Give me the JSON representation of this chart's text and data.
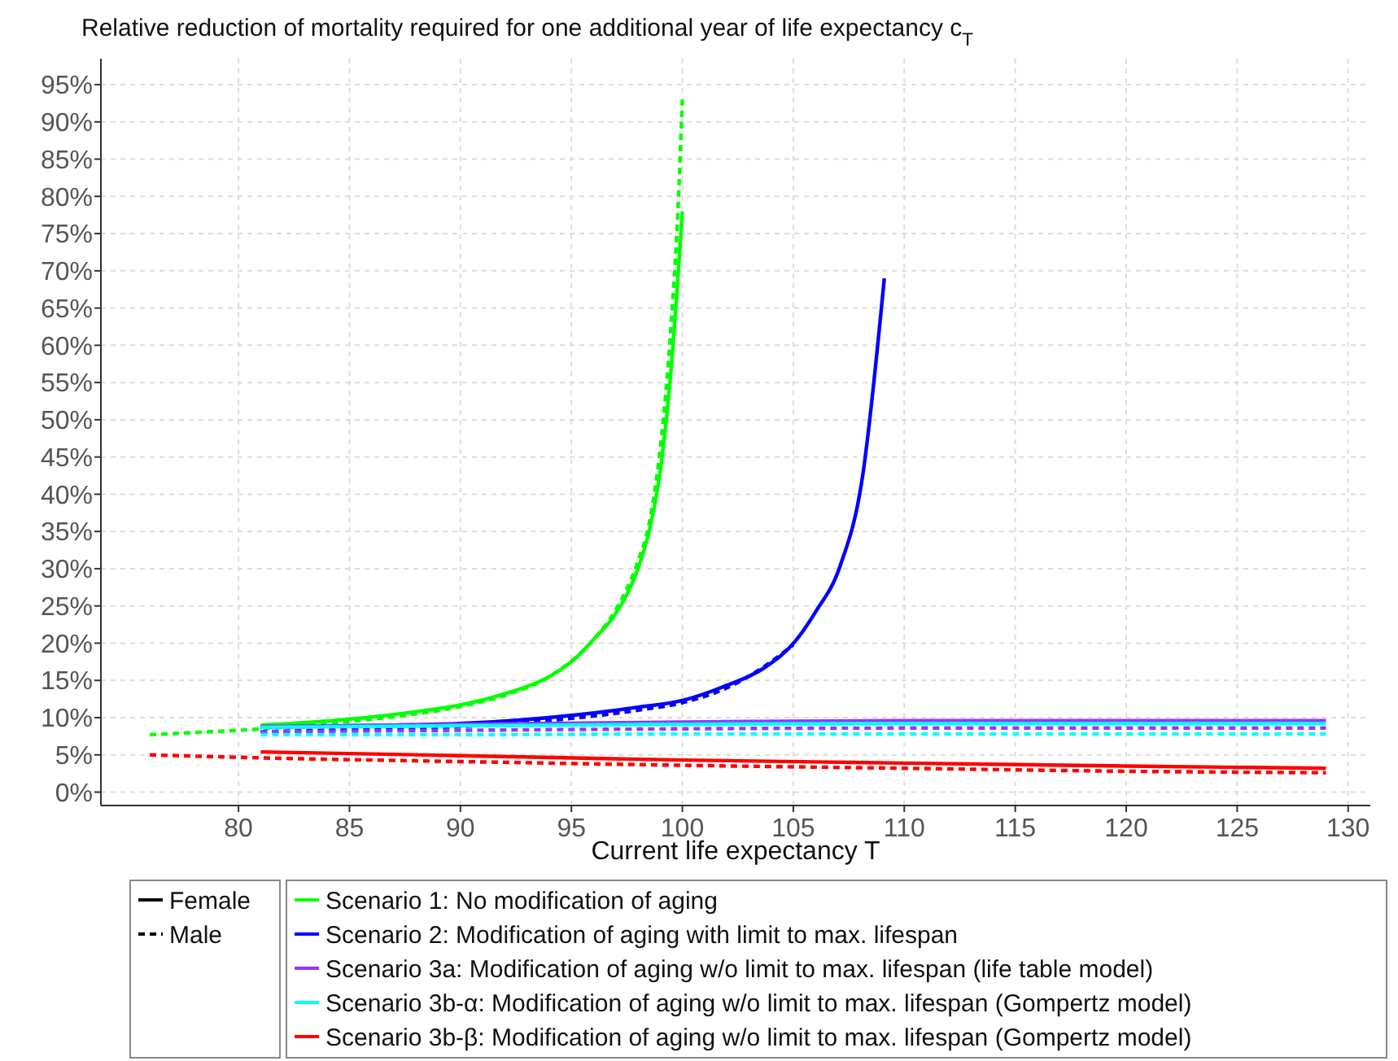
{
  "chart_data": {
    "type": "line",
    "title": "Relative reduction of mortality required for one additional year of life expectancy c$_{T}$",
    "xlabel": "Current life expectancy T",
    "xlim": [
      73.8,
      131
    ],
    "ylim": [
      -1.8,
      98.5
    ],
    "xticks": [
      80,
      85,
      90,
      95,
      100,
      105,
      110,
      115,
      120,
      125,
      130
    ],
    "yticks": [
      {
        "value": 0,
        "label": "0%"
      },
      {
        "value": 5,
        "label": "5%"
      },
      {
        "value": 10,
        "label": "10%"
      },
      {
        "value": 15,
        "label": "15%"
      },
      {
        "value": 20,
        "label": "20%"
      },
      {
        "value": 25,
        "label": "25%"
      },
      {
        "value": 30,
        "label": "30%"
      },
      {
        "value": 35,
        "label": "35%"
      },
      {
        "value": 40,
        "label": "40%"
      },
      {
        "value": 45,
        "label": "45%"
      },
      {
        "value": 50,
        "label": "50%"
      },
      {
        "value": 55,
        "label": "55%"
      },
      {
        "value": 60,
        "label": "60%"
      },
      {
        "value": 65,
        "label": "65%"
      },
      {
        "value": 70,
        "label": "70%"
      },
      {
        "value": 75,
        "label": "75%"
      },
      {
        "value": 80,
        "label": "80%"
      },
      {
        "value": 85,
        "label": "85%"
      },
      {
        "value": 90,
        "label": "90%"
      },
      {
        "value": 95,
        "label": "95%"
      }
    ],
    "grid": true,
    "legend": "bottom",
    "marker": "none",
    "annotations": [
      "Female",
      "Male"
    ],
    "series": [
      {
        "name": "Scenario 1: No modification of aging",
        "color": "#00ff00",
        "line_style": "solid",
        "x": [
          81,
          85,
          88,
          90,
          92,
          94,
          95,
          96,
          97,
          98,
          98.5,
          99,
          99.5,
          100
        ],
        "values": [
          9,
          9.8,
          10.8,
          11.7,
          13.2,
          15.5,
          17.5,
          20.5,
          24,
          30,
          35,
          43,
          57,
          78
        ]
      },
      {
        "color": "#00ff00",
        "line_style": "dashed",
        "x": [
          76,
          78,
          80,
          82,
          85,
          88,
          90,
          92,
          94,
          96,
          97,
          98,
          98.5,
          99,
          99.5,
          99.8,
          100
        ],
        "values": [
          7.7,
          8,
          8.3,
          8.7,
          9.5,
          10.5,
          11.5,
          13,
          15.5,
          20.5,
          24.5,
          31,
          36,
          46,
          63,
          78,
          93
        ]
      },
      {
        "name": "Scenario 2: Modification of aging with limit to max. lifespan",
        "color": "#0000ff",
        "line_style": "solid",
        "x": [
          81,
          85,
          90,
          95,
          98,
          100,
          101.8,
          103.7,
          105.1,
          106,
          107.1,
          108.1,
          109.1
        ],
        "values": [
          8.7,
          8.9,
          9.2,
          10.3,
          11.4,
          12.3,
          14.1,
          16.7,
          20.3,
          24.2,
          30.3,
          42,
          69
        ]
      },
      {
        "color": "#0000ff",
        "line_style": "dashed",
        "x": [
          81,
          85,
          90,
          95,
          98,
          100,
          102,
          104,
          105
        ],
        "values": [
          8.1,
          8.4,
          8.8,
          9.9,
          11,
          12,
          14,
          17.5,
          19.8
        ]
      },
      {
        "name": "Scenario 3a: Modification of aging w/o limit to max. lifespan (life table model)",
        "color": "#9933ff",
        "line_style": "solid",
        "x": [
          81,
          90,
          100,
          110,
          120,
          129
        ],
        "values": [
          8.8,
          9.1,
          9.4,
          9.6,
          9.6,
          9.6
        ]
      },
      {
        "color": "#9933ff",
        "line_style": "dashed",
        "x": [
          81,
          90,
          100,
          110,
          120,
          129
        ],
        "values": [
          8.1,
          8.3,
          8.5,
          8.6,
          8.6,
          8.6
        ]
      },
      {
        "name": "Scenario 3b-α: Modification of aging w/o limit to max. lifespan (Gompertz model)",
        "color": "#00ffff",
        "line_style": "solid",
        "x": [
          81,
          90,
          100,
          110,
          120,
          129
        ],
        "values": [
          8.7,
          8.9,
          9.1,
          9.2,
          9.2,
          9.2
        ]
      },
      {
        "color": "#00ffff",
        "line_style": "dashed",
        "x": [
          81,
          90,
          100,
          110,
          120,
          129
        ],
        "values": [
          7.7,
          7.7,
          7.8,
          7.8,
          7.8,
          7.8
        ]
      },
      {
        "name": "Scenario 3b-β: Modification of aging w/o limit to max. lifespan (Gompertz model)",
        "color": "#ff0000",
        "line_style": "solid",
        "x": [
          81,
          90,
          100,
          110,
          120,
          129
        ],
        "values": [
          5.4,
          4.9,
          4.3,
          3.9,
          3.5,
          3.2
        ]
      },
      {
        "color": "#ff0000",
        "line_style": "dashed",
        "x": [
          76,
          81,
          90,
          100,
          110,
          120,
          129
        ],
        "values": [
          5,
          4.6,
          4.1,
          3.6,
          3.2,
          2.8,
          2.6
        ]
      }
    ]
  }
}
